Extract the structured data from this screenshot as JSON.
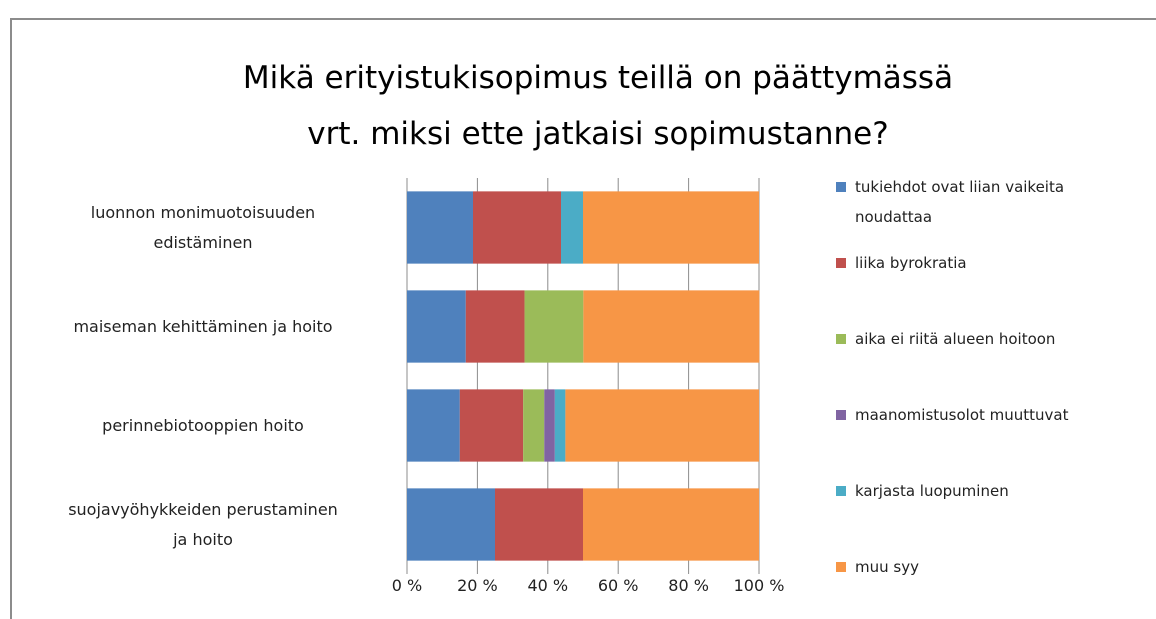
{
  "chart_data": {
    "type": "bar",
    "orientation": "horizontal",
    "stacked": true,
    "title": "Mikä erityistukisopimus teillä on päättymässä\nvrt. miksi ette jatkaisi sopimustanne?",
    "categories": [
      "luonnon monimuotoisuuden\nedistäminen",
      "maiseman kehittäminen ja hoito",
      "perinnebiotooppien hoito",
      "suojavyöhykkeiden perustaminen\nja hoito"
    ],
    "series": [
      {
        "name": "tukiehdot ovat liian vaikeita\nnoudattaa",
        "color": "#4f81bd",
        "values": [
          18.75,
          16.7,
          15,
          25
        ]
      },
      {
        "name": "liika byrokratia",
        "color": "#c0504d",
        "values": [
          25,
          16.7,
          18,
          25
        ]
      },
      {
        "name": "aika ei riitä alueen hoitoon",
        "color": "#9bbb59",
        "values": [
          0,
          16.7,
          6,
          0
        ]
      },
      {
        "name": "maanomistusolot muuttuvat",
        "color": "#8064a2",
        "values": [
          0,
          0,
          3,
          0
        ]
      },
      {
        "name": "karjasta luopuminen",
        "color": "#4bacc6",
        "values": [
          6.25,
          0,
          3,
          0
        ]
      },
      {
        "name": "muu syy",
        "color": "#f79646",
        "values": [
          50,
          50,
          55,
          50
        ]
      }
    ],
    "xlim": [
      0,
      100
    ],
    "xticks": [
      {
        "value": 0,
        "label": "0 %"
      },
      {
        "value": 20,
        "label": "20 %"
      },
      {
        "value": 40,
        "label": "40 %"
      },
      {
        "value": 60,
        "label": "60 %"
      },
      {
        "value": 80,
        "label": "80 %"
      },
      {
        "value": 100,
        "label": "100 %"
      }
    ],
    "grid": true,
    "legend": "right"
  }
}
